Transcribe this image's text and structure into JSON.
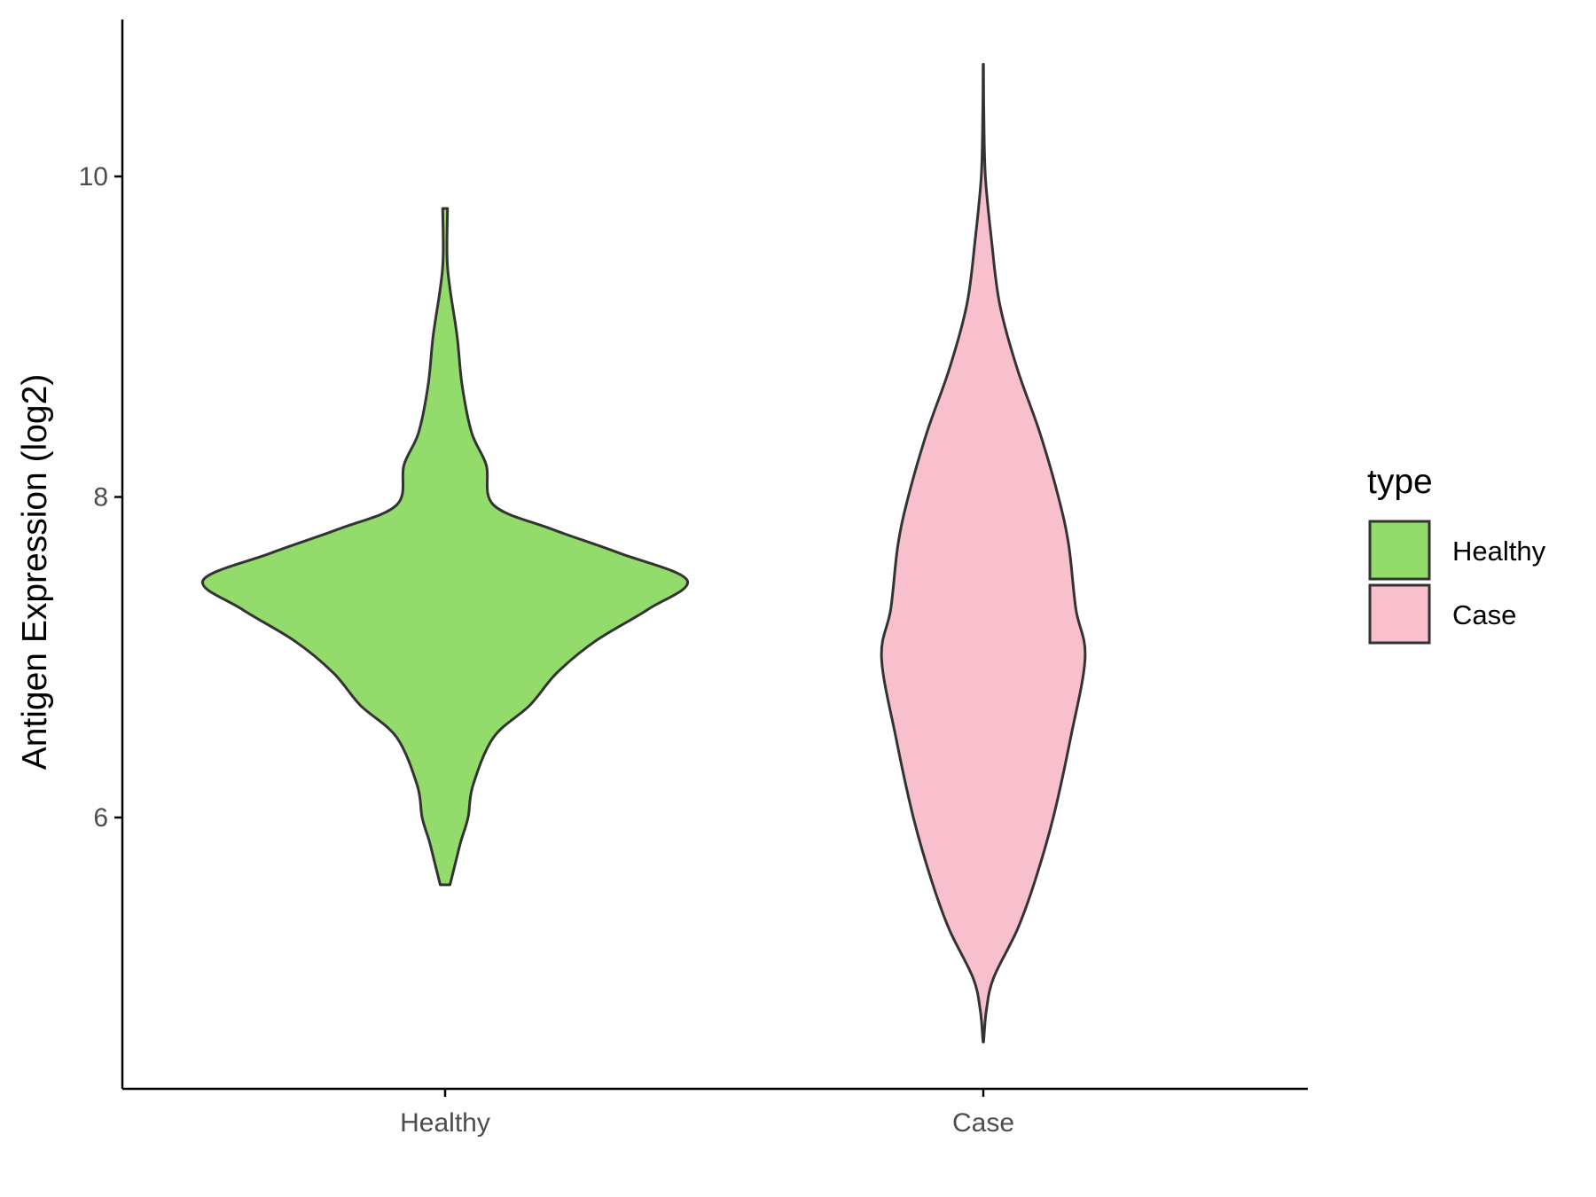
{
  "chart_data": {
    "type": "violin",
    "title": "",
    "xlabel": "",
    "ylabel": "Antigen Expression (log2)",
    "categories": [
      "Healthy",
      "Case"
    ],
    "ylim": [
      4.6,
      11.2
    ],
    "yticks": [
      6,
      8,
      10
    ],
    "grid": false,
    "legend": {
      "title": "type",
      "position": "right",
      "entries": [
        {
          "label": "Healthy",
          "color": "#93dc6b"
        },
        {
          "label": "Case",
          "color": "#f8c0cc"
        }
      ]
    },
    "series": [
      {
        "category": "Healthy",
        "color": "#93dc6b",
        "y_min": 5.58,
        "y_max": 9.8,
        "profile": [
          [
            5.58,
            0.02
          ],
          [
            5.7,
            0.04
          ],
          [
            5.85,
            0.065
          ],
          [
            6.0,
            0.095
          ],
          [
            6.2,
            0.115
          ],
          [
            6.5,
            0.2
          ],
          [
            6.7,
            0.35
          ],
          [
            6.9,
            0.46
          ],
          [
            7.1,
            0.62
          ],
          [
            7.3,
            0.84
          ],
          [
            7.48,
            1.0
          ],
          [
            7.65,
            0.72
          ],
          [
            7.8,
            0.44
          ],
          [
            7.95,
            0.2
          ],
          [
            8.2,
            0.17
          ],
          [
            8.4,
            0.11
          ],
          [
            8.7,
            0.07
          ],
          [
            9.0,
            0.05
          ],
          [
            9.3,
            0.02
          ],
          [
            9.5,
            0.008
          ],
          [
            9.8,
            0.01
          ]
        ]
      },
      {
        "category": "Case",
        "color": "#f8c0cc",
        "y_min": 4.6,
        "y_max": 10.7,
        "profile": [
          [
            4.6,
            0.003
          ],
          [
            4.8,
            0.03
          ],
          [
            5.0,
            0.1
          ],
          [
            5.3,
            0.33
          ],
          [
            5.6,
            0.5
          ],
          [
            6.0,
            0.68
          ],
          [
            6.5,
            0.85
          ],
          [
            7.0,
            0.99
          ],
          [
            7.3,
            0.9
          ],
          [
            7.7,
            0.83
          ],
          [
            8.0,
            0.73
          ],
          [
            8.4,
            0.55
          ],
          [
            8.8,
            0.33
          ],
          [
            9.2,
            0.16
          ],
          [
            9.6,
            0.08
          ],
          [
            10.0,
            0.02
          ],
          [
            10.4,
            0.005
          ],
          [
            10.7,
            0.002
          ]
        ]
      }
    ]
  }
}
